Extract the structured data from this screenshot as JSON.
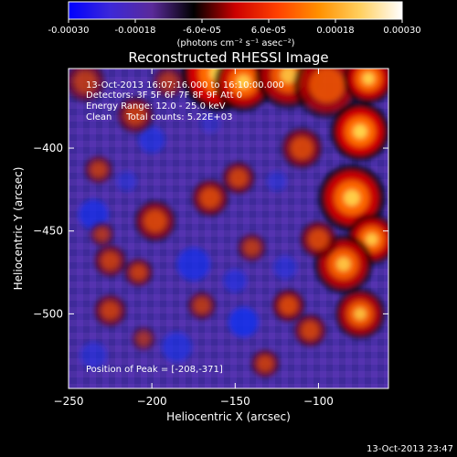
{
  "chart_data": {
    "type": "heatmap",
    "title": "Reconstructed RHESSI Image",
    "xlabel": "Heliocentric X (arcsec)",
    "ylabel": "Heliocentric Y (arcsec)",
    "xlim": [
      -250,
      -58
    ],
    "ylim": [
      -545,
      -352
    ],
    "x_ticks": [
      -250,
      -200,
      -150,
      -100
    ],
    "y_ticks": [
      -400,
      -450,
      -500
    ],
    "colorbar": {
      "min": -0.0003,
      "max": 0.0003,
      "ticks": [
        "-0.00030",
        "-0.00018",
        "-6.0e-05",
        "6.0e-05",
        "0.00018",
        "0.00030"
      ],
      "unit_label": "(photons cm⁻² s⁻¹ asec⁻²)",
      "colors": [
        "#0000ff",
        "#3c28d8",
        "#5a2a9a",
        "#000000",
        "#cc0000",
        "#ff4000",
        "#ff9000",
        "#ffd060",
        "#ffffff"
      ]
    },
    "annotations": {
      "time_range": "13-Oct-2013 16:07:16.000 to 16:10:00.000",
      "detectors": "Detectors: 3F 5F 6F 7F 8F 9F Att 0",
      "energy_range": "Energy Range: 12.0 - 25.0 keV",
      "method_counts": "Clean     Total counts: 5.22E+03",
      "peak_position": "Position of Peak = [-208,-371]"
    },
    "peak": [
      -208,
      -371
    ],
    "hot_spots": [
      {
        "x": -160,
        "y": -355,
        "r": 18,
        "a": 1.0
      },
      {
        "x": -145,
        "y": -360,
        "r": 14,
        "a": 0.9
      },
      {
        "x": -118,
        "y": -356,
        "r": 16,
        "a": 0.8
      },
      {
        "x": -95,
        "y": -362,
        "r": 16,
        "a": 0.7
      },
      {
        "x": -70,
        "y": -358,
        "r": 12,
        "a": 0.95
      },
      {
        "x": -75,
        "y": -390,
        "r": 14,
        "a": 1.0
      },
      {
        "x": -80,
        "y": -430,
        "r": 16,
        "a": 0.95
      },
      {
        "x": -68,
        "y": -455,
        "r": 12,
        "a": 0.9
      },
      {
        "x": -85,
        "y": -470,
        "r": 14,
        "a": 0.85
      },
      {
        "x": -75,
        "y": -500,
        "r": 12,
        "a": 0.8
      },
      {
        "x": -110,
        "y": -400,
        "r": 10,
        "a": 0.6
      },
      {
        "x": -100,
        "y": -455,
        "r": 9,
        "a": 0.6
      },
      {
        "x": -118,
        "y": -495,
        "r": 8,
        "a": 0.6
      },
      {
        "x": -148,
        "y": -418,
        "r": 8,
        "a": 0.55
      },
      {
        "x": -140,
        "y": -460,
        "r": 7,
        "a": 0.45
      },
      {
        "x": -132,
        "y": -530,
        "r": 7,
        "a": 0.5
      },
      {
        "x": -210,
        "y": -380,
        "r": 9,
        "a": 0.5
      },
      {
        "x": -240,
        "y": -360,
        "r": 10,
        "a": 0.45
      },
      {
        "x": -232,
        "y": -413,
        "r": 7,
        "a": 0.45
      },
      {
        "x": -230,
        "y": -452,
        "r": 6,
        "a": 0.4
      },
      {
        "x": -225,
        "y": -468,
        "r": 8,
        "a": 0.5
      },
      {
        "x": -198,
        "y": -444,
        "r": 10,
        "a": 0.6
      },
      {
        "x": -208,
        "y": -475,
        "r": 7,
        "a": 0.5
      },
      {
        "x": -225,
        "y": -498,
        "r": 8,
        "a": 0.5
      },
      {
        "x": -205,
        "y": -515,
        "r": 6,
        "a": 0.35
      },
      {
        "x": -170,
        "y": -495,
        "r": 7,
        "a": 0.45
      },
      {
        "x": -165,
        "y": -430,
        "r": 9,
        "a": 0.6
      },
      {
        "x": -105,
        "y": -510,
        "r": 8,
        "a": 0.55
      },
      {
        "x": -190,
        "y": -360,
        "r": 8,
        "a": 0.4
      }
    ],
    "cold_spots": [
      {
        "x": -235,
        "y": -440,
        "r": 9,
        "a": 0.7
      },
      {
        "x": -200,
        "y": -395,
        "r": 8,
        "a": 0.6
      },
      {
        "x": -175,
        "y": -470,
        "r": 10,
        "a": 0.7
      },
      {
        "x": -145,
        "y": -505,
        "r": 9,
        "a": 0.8
      },
      {
        "x": -150,
        "y": -480,
        "r": 7,
        "a": 0.55
      },
      {
        "x": -185,
        "y": -520,
        "r": 9,
        "a": 0.6
      },
      {
        "x": -120,
        "y": -472,
        "r": 7,
        "a": 0.5
      },
      {
        "x": -125,
        "y": -420,
        "r": 6,
        "a": 0.45
      },
      {
        "x": -215,
        "y": -420,
        "r": 6,
        "a": 0.45
      },
      {
        "x": -235,
        "y": -525,
        "r": 8,
        "a": 0.5
      },
      {
        "x": -165,
        "y": -385,
        "r": 6,
        "a": 0.35
      }
    ]
  },
  "footer": {
    "timestamp": "13-Oct-2013 23:47"
  }
}
